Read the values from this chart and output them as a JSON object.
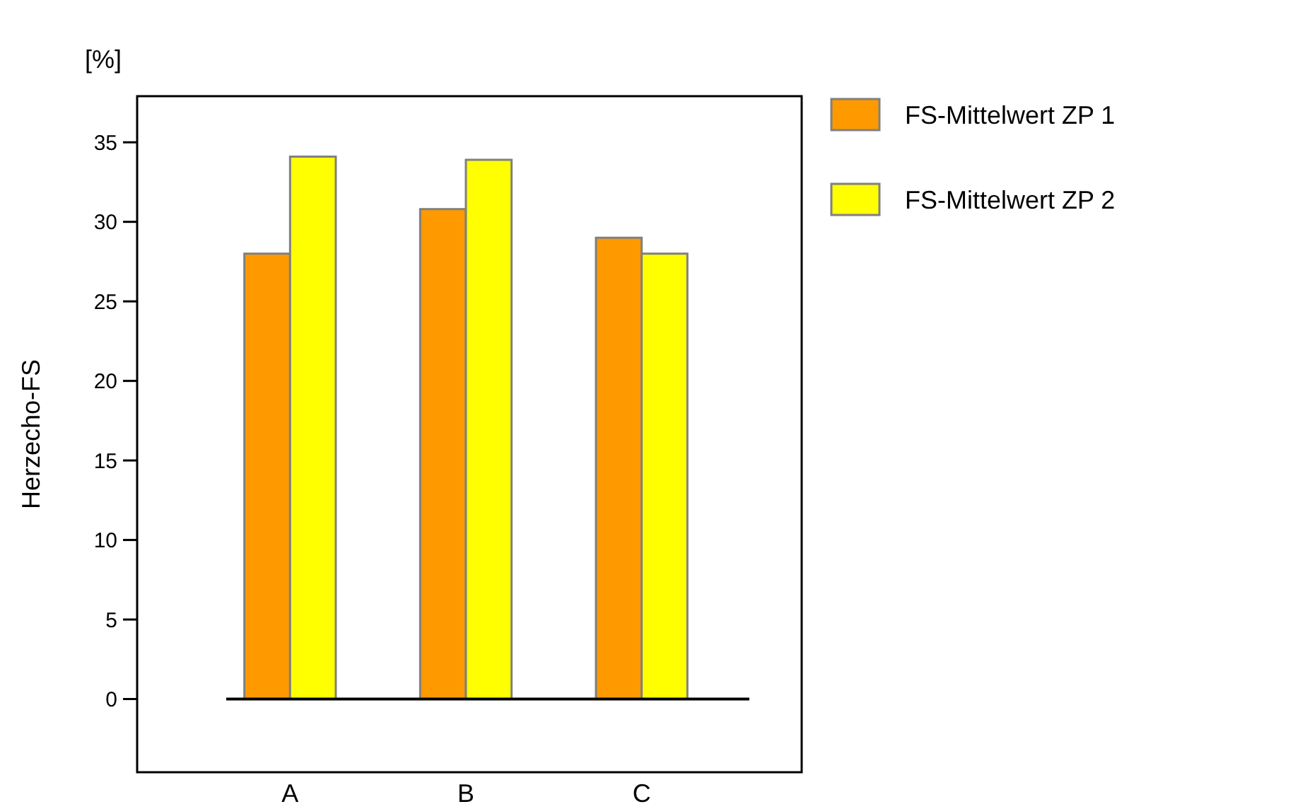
{
  "chart_data": {
    "type": "bar",
    "ylabel": "Herzecho-FS",
    "annotations": [
      "[%]"
    ],
    "categories": [
      "A",
      "B",
      "C"
    ],
    "series": [
      {
        "name": "FS-Mittelwert ZP 1",
        "color": "#ff9900",
        "values": [
          28.0,
          30.8,
          29.0
        ]
      },
      {
        "name": "FS-Mittelwert ZP 2",
        "color": "#ffff00",
        "values": [
          34.1,
          33.9,
          28.0
        ]
      }
    ],
    "ylim": [
      -4.6,
      37.9
    ],
    "yticks": [
      0,
      5,
      10,
      15,
      20,
      25,
      30,
      35
    ],
    "legend": "right"
  }
}
